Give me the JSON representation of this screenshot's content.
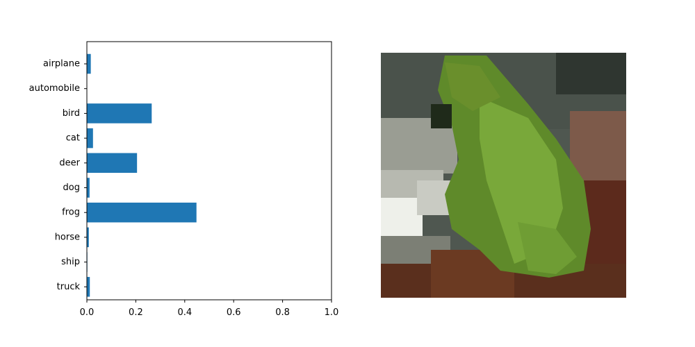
{
  "chart_data": [
    {
      "type": "bar",
      "orientation": "horizontal",
      "title": "",
      "xlabel": "",
      "ylabel": "",
      "categories": [
        "airplane",
        "automobile",
        "bird",
        "cat",
        "deer",
        "dog",
        "frog",
        "horse",
        "ship",
        "truck"
      ],
      "values": [
        0.016,
        0.001,
        0.265,
        0.025,
        0.205,
        0.011,
        0.448,
        0.008,
        0.002,
        0.012
      ],
      "xlim": [
        0.0,
        1.0
      ],
      "xticks": [
        "0.0",
        "0.2",
        "0.4",
        "0.6",
        "0.8",
        "1.0"
      ],
      "grid": false,
      "legend": "none",
      "color": "#1f77b4"
    }
  ],
  "image_panel": {
    "description_icon": "frog-photo",
    "colors": {
      "foliage": "#5f8a2a",
      "foliage_light": "#79a83a",
      "stone": "#8c8f85",
      "stone_light": "#c9cbc3",
      "soil": "#6b3a22",
      "shadow": "#3c443c"
    }
  }
}
